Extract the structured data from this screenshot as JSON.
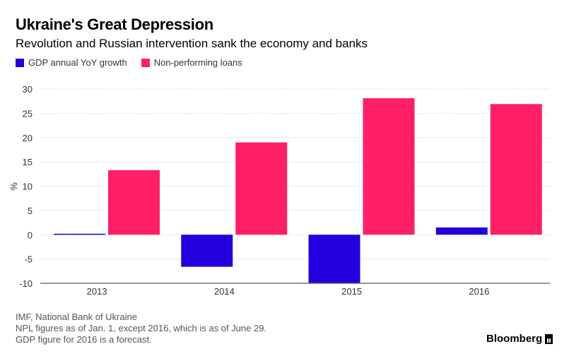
{
  "header": {
    "title": "Ukraine's Great Depression",
    "subtitle": "Revolution and Russian intervention sank the economy and banks"
  },
  "legend": {
    "items": [
      {
        "label": "GDP annual YoY growth",
        "color": "#2200dd"
      },
      {
        "label": "Non-performing loans",
        "color": "#ff1f66"
      }
    ]
  },
  "chart_data": {
    "type": "bar",
    "categories": [
      "2013",
      "2014",
      "2015",
      "2016"
    ],
    "series": [
      {
        "name": "GDP annual YoY growth",
        "values": [
          0.2,
          -6.6,
          -9.9,
          1.5
        ]
      },
      {
        "name": "Non-performing loans",
        "values": [
          13.3,
          19.0,
          28.1,
          26.9
        ]
      }
    ],
    "title": "Ukraine's Great Depression",
    "xlabel": "",
    "ylabel": "%",
    "ylim": [
      -10,
      30
    ],
    "yticks": [
      "30",
      "25",
      "20",
      "15",
      "10",
      "5",
      "0",
      "-5",
      "-10"
    ],
    "grid": true
  },
  "footer": {
    "lines": [
      "IMF, National Bank of Ukraine",
      "NPL figures as of Jan. 1, except 2016, which is as of June 29.",
      "GDP figure for 2016 is a forecast."
    ],
    "brand": "Bloomberg"
  }
}
